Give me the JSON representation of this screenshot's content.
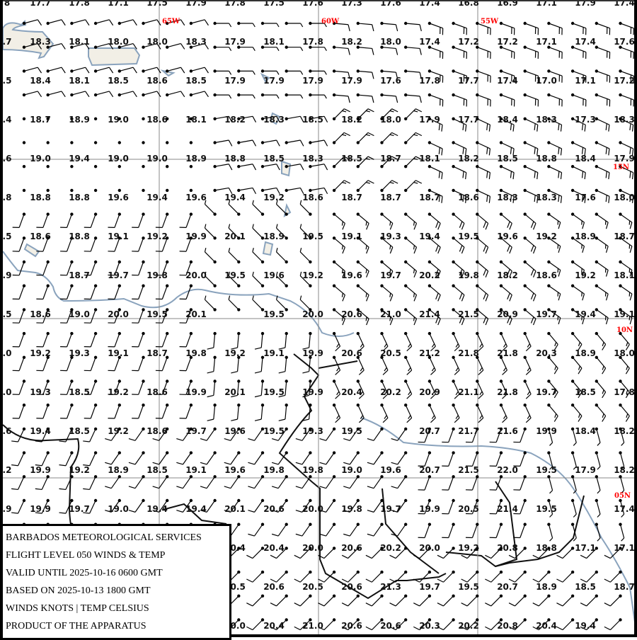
{
  "map": {
    "colors": {
      "coast": "#8aa3bd",
      "border": "#111111",
      "gridline": "#888888",
      "label": "#ff0000",
      "barb": "#000000"
    },
    "meridian_labels": [
      "65W",
      "60W",
      "55W"
    ],
    "parallel_labels": [
      "15N",
      "10N",
      "05N"
    ],
    "left_edge_partial": [
      "8",
      ".7",
      ".5",
      ".4",
      ".6",
      ".8",
      ".5",
      ".9",
      ".5",
      ".0",
      ".0",
      ".6",
      ".2",
      ".9"
    ],
    "temperatures": [
      [
        17.7,
        17.8,
        17.1,
        17.5,
        17.9,
        17.8,
        17.5,
        17.6,
        17.3,
        17.6,
        17.4,
        16.8,
        16.9,
        17.1,
        17.9,
        17.4
      ],
      [
        18.3,
        18.1,
        18.0,
        18.0,
        18.3,
        17.9,
        18.1,
        17.8,
        18.2,
        18.0,
        17.4,
        17.2,
        17.2,
        17.1,
        17.4,
        17.6
      ],
      [
        18.4,
        18.1,
        18.5,
        18.6,
        18.5,
        17.9,
        17.9,
        17.9,
        17.9,
        17.6,
        17.8,
        17.7,
        17.4,
        17.0,
        17.1,
        17.2
      ],
      [
        18.7,
        18.9,
        19.0,
        18.6,
        18.1,
        18.2,
        18.3,
        18.5,
        18.2,
        18.0,
        17.9,
        17.7,
        18.4,
        18.3,
        17.3,
        18.3
      ],
      [
        19.0,
        19.4,
        19.0,
        19.0,
        18.9,
        18.8,
        18.5,
        18.3,
        18.5,
        18.7,
        18.1,
        18.2,
        18.5,
        18.8,
        18.4,
        17.9
      ],
      [
        18.8,
        18.8,
        19.6,
        19.4,
        19.6,
        19.4,
        19.2,
        18.6,
        18.7,
        18.7,
        18.7,
        18.6,
        18.3,
        18.3,
        17.6,
        18.0
      ],
      [
        18.6,
        18.8,
        19.1,
        19.2,
        19.9,
        20.1,
        18.9,
        19.5,
        19.1,
        19.3,
        19.4,
        19.5,
        19.6,
        19.2,
        18.9,
        18.7
      ],
      [
        null,
        18.7,
        19.7,
        19.8,
        20.0,
        19.5,
        19.6,
        19.2,
        19.6,
        19.7,
        20.2,
        19.8,
        18.2,
        18.6,
        19.2,
        18.1
      ],
      [
        18.6,
        19.0,
        20.0,
        19.5,
        20.1,
        null,
        19.5,
        20.0,
        20.6,
        21.0,
        21.4,
        21.5,
        20.9,
        19.7,
        19.4,
        19.1
      ],
      [
        19.2,
        19.3,
        19.1,
        18.7,
        19.8,
        19.2,
        19.1,
        19.9,
        20.6,
        20.5,
        21.2,
        21.8,
        21.8,
        20.3,
        18.9,
        18.0
      ],
      [
        19.3,
        18.5,
        19.2,
        18.6,
        19.9,
        20.1,
        19.5,
        19.9,
        20.4,
        20.2,
        20.9,
        21.1,
        21.8,
        19.7,
        18.5,
        17.8
      ],
      [
        19.4,
        18.5,
        19.2,
        18.6,
        19.7,
        19.6,
        19.5,
        19.3,
        19.5,
        null,
        20.7,
        21.7,
        21.6,
        19.9,
        18.4,
        18.2
      ],
      [
        19.9,
        19.2,
        18.9,
        18.5,
        19.1,
        19.6,
        19.8,
        19.8,
        19.0,
        19.6,
        20.7,
        21.5,
        22.0,
        19.5,
        17.9,
        18.2
      ],
      [
        19.9,
        19.7,
        19.0,
        19.4,
        19.4,
        20.1,
        20.6,
        20.0,
        19.8,
        19.7,
        19.9,
        20.5,
        21.4,
        19.5,
        null,
        17.4
      ],
      [
        null,
        null,
        null,
        null,
        null,
        20.4,
        20.4,
        20.0,
        20.6,
        20.2,
        20.0,
        19.2,
        20.8,
        18.8,
        17.1,
        17.1
      ],
      [
        null,
        null,
        null,
        null,
        null,
        20.5,
        20.6,
        20.5,
        20.6,
        21.3,
        19.7,
        19.5,
        20.7,
        18.9,
        18.5,
        18.7
      ],
      [
        null,
        null,
        null,
        null,
        null,
        20.0,
        20.4,
        21.0,
        20.6,
        20.6,
        20.3,
        20.2,
        20.8,
        20.4,
        19.4,
        null
      ]
    ],
    "wind_field_dir_deg": [
      [
        75,
        75,
        90,
        95,
        110,
        110
      ],
      [
        0,
        0,
        80,
        45,
        115,
        115
      ],
      [
        200,
        200,
        315,
        130,
        130,
        125
      ],
      [
        200,
        200,
        185,
        155,
        155,
        140
      ],
      [
        205,
        215,
        215,
        215,
        200,
        165
      ],
      [
        185,
        225,
        225,
        225,
        225,
        225
      ]
    ],
    "wind_field_speed_kt": [
      [
        10,
        10,
        5,
        10,
        20,
        20
      ],
      [
        0,
        0,
        10,
        15,
        20,
        20
      ],
      [
        10,
        10,
        5,
        15,
        20,
        15
      ],
      [
        10,
        10,
        10,
        15,
        15,
        15
      ],
      [
        10,
        10,
        10,
        10,
        10,
        5
      ],
      [
        5,
        10,
        10,
        10,
        10,
        10
      ]
    ]
  },
  "legend": {
    "lines": [
      "BARBADOS METEOROLOGICAL SERVICES",
      "FLIGHT LEVEL 050 WINDS & TEMP",
      "VALID UNTIL 2025-10-16 0600 GMT",
      "BASED ON 2025-10-13 1800 GMT",
      "WINDS KNOTS | TEMP CELSIUS",
      "PRODUCT OF THE APPARATUS"
    ]
  }
}
